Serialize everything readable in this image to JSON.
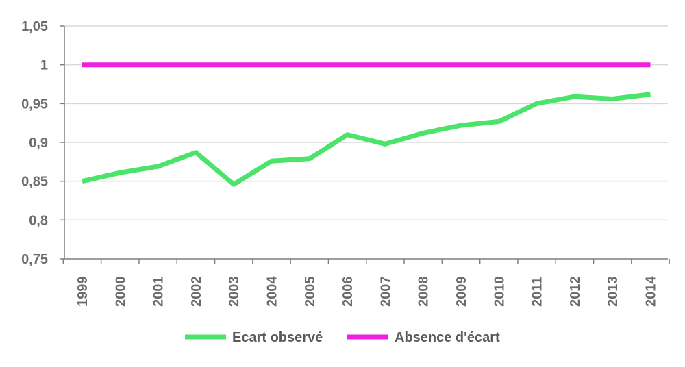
{
  "chart_data": {
    "type": "line",
    "categories": [
      "1999",
      "2000",
      "2001",
      "2002",
      "2003",
      "2004",
      "2005",
      "2006",
      "2007",
      "2008",
      "2009",
      "2010",
      "2011",
      "2012",
      "2013",
      "2014"
    ],
    "y_tick_labels": [
      "0,75",
      "0,8",
      "0,85",
      "0,9",
      "0,95",
      "1",
      "1,05"
    ],
    "y_ticks": [
      0.75,
      0.8,
      0.85,
      0.9,
      0.95,
      1.0,
      1.05
    ],
    "ylim": [
      0.75,
      1.05
    ],
    "grid": true,
    "legend_position": "bottom",
    "series": [
      {
        "name": "Ecart observé",
        "color": "#4be36a",
        "values": [
          0.85,
          0.861,
          0.869,
          0.887,
          0.846,
          0.876,
          0.879,
          0.91,
          0.898,
          0.912,
          0.922,
          0.927,
          0.95,
          0.959,
          0.956,
          0.962
        ]
      },
      {
        "name": "Absence d'écart",
        "color": "#f01fe0",
        "values": [
          1,
          1,
          1,
          1,
          1,
          1,
          1,
          1,
          1,
          1,
          1,
          1,
          1,
          1,
          1,
          1
        ]
      }
    ]
  }
}
